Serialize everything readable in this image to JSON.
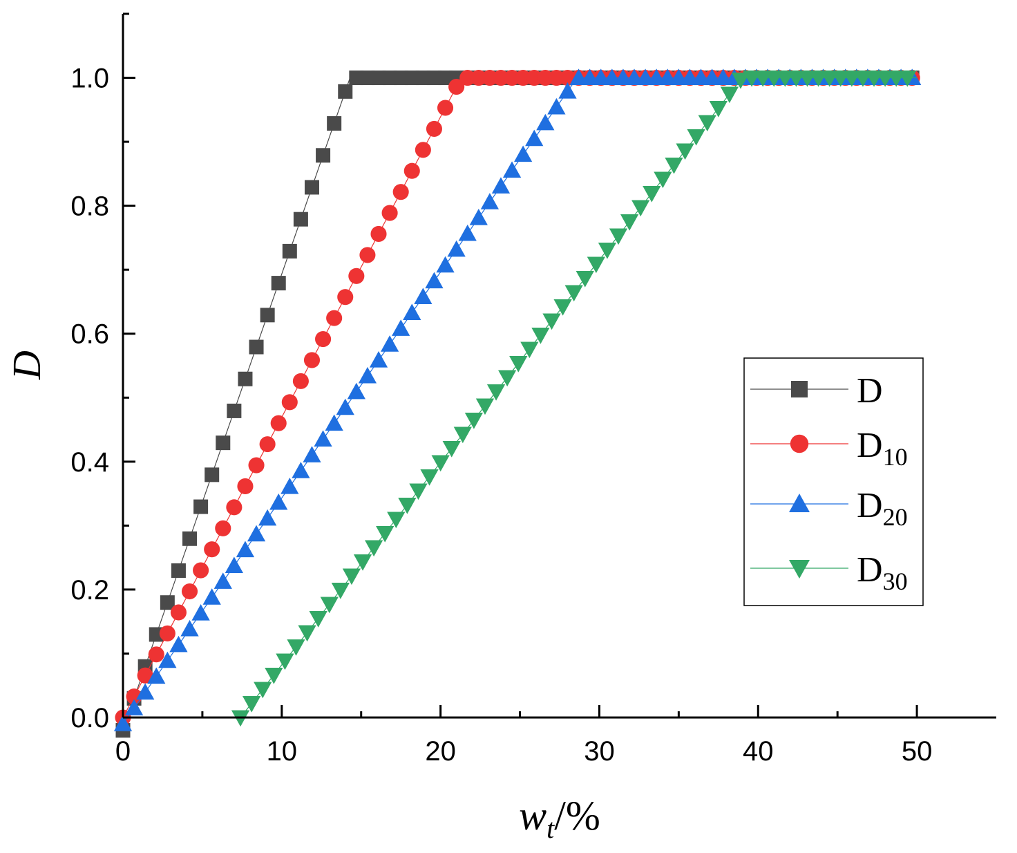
{
  "chart_data": {
    "type": "scatter",
    "title": "",
    "xlabel_main": "w",
    "xlabel_sub": "t",
    "xlabel_suffix": "/%",
    "ylabel": "D",
    "xlim": [
      0,
      55
    ],
    "ylim": [
      0,
      1.1
    ],
    "xticks": [
      0,
      10,
      20,
      30,
      40,
      50
    ],
    "xtick_labels": [
      "0",
      "10",
      "20",
      "30",
      "40",
      "50"
    ],
    "yticks": [
      0,
      0.2,
      0.4,
      0.6,
      0.8,
      1.0
    ],
    "ytick_labels": [
      "0.0",
      "0.2",
      "0.4",
      "0.6",
      "0.8",
      "1.0"
    ],
    "legend_position": "center-right",
    "series": [
      {
        "name": "D",
        "label_main": "D",
        "label_sub": "",
        "color": "#4a4a4a",
        "marker": "square",
        "x_start": 0,
        "x_end": 50,
        "x_step": 0.7,
        "segments": [
          [
            0,
            -0.02
          ],
          [
            14.3,
            1.0
          ],
          [
            50,
            1.0
          ]
        ]
      },
      {
        "name": "D10",
        "label_main": "D",
        "label_sub": "10",
        "color": "#ee3333",
        "marker": "circle",
        "x_start": 0,
        "x_end": 50,
        "x_step": 0.7,
        "segments": [
          [
            0,
            0.0
          ],
          [
            21.3,
            1.0
          ],
          [
            50,
            1.0
          ]
        ]
      },
      {
        "name": "D20",
        "label_main": "D",
        "label_sub": "20",
        "color": "#1f6fe0",
        "marker": "triangle-up",
        "x_start": 0,
        "x_end": 50,
        "x_step": 0.7,
        "segments": [
          [
            0,
            -0.01
          ],
          [
            28.6,
            1.0
          ],
          [
            50,
            1.0
          ]
        ]
      },
      {
        "name": "D30",
        "label_main": "D",
        "label_sub": "30",
        "color": "#33a866",
        "marker": "triangle-down",
        "x_start": 7.4,
        "x_end": 50,
        "x_step": 0.7,
        "segments": [
          [
            7.4,
            0.0
          ],
          [
            39.0,
            1.0
          ],
          [
            50,
            1.0
          ]
        ]
      }
    ]
  }
}
